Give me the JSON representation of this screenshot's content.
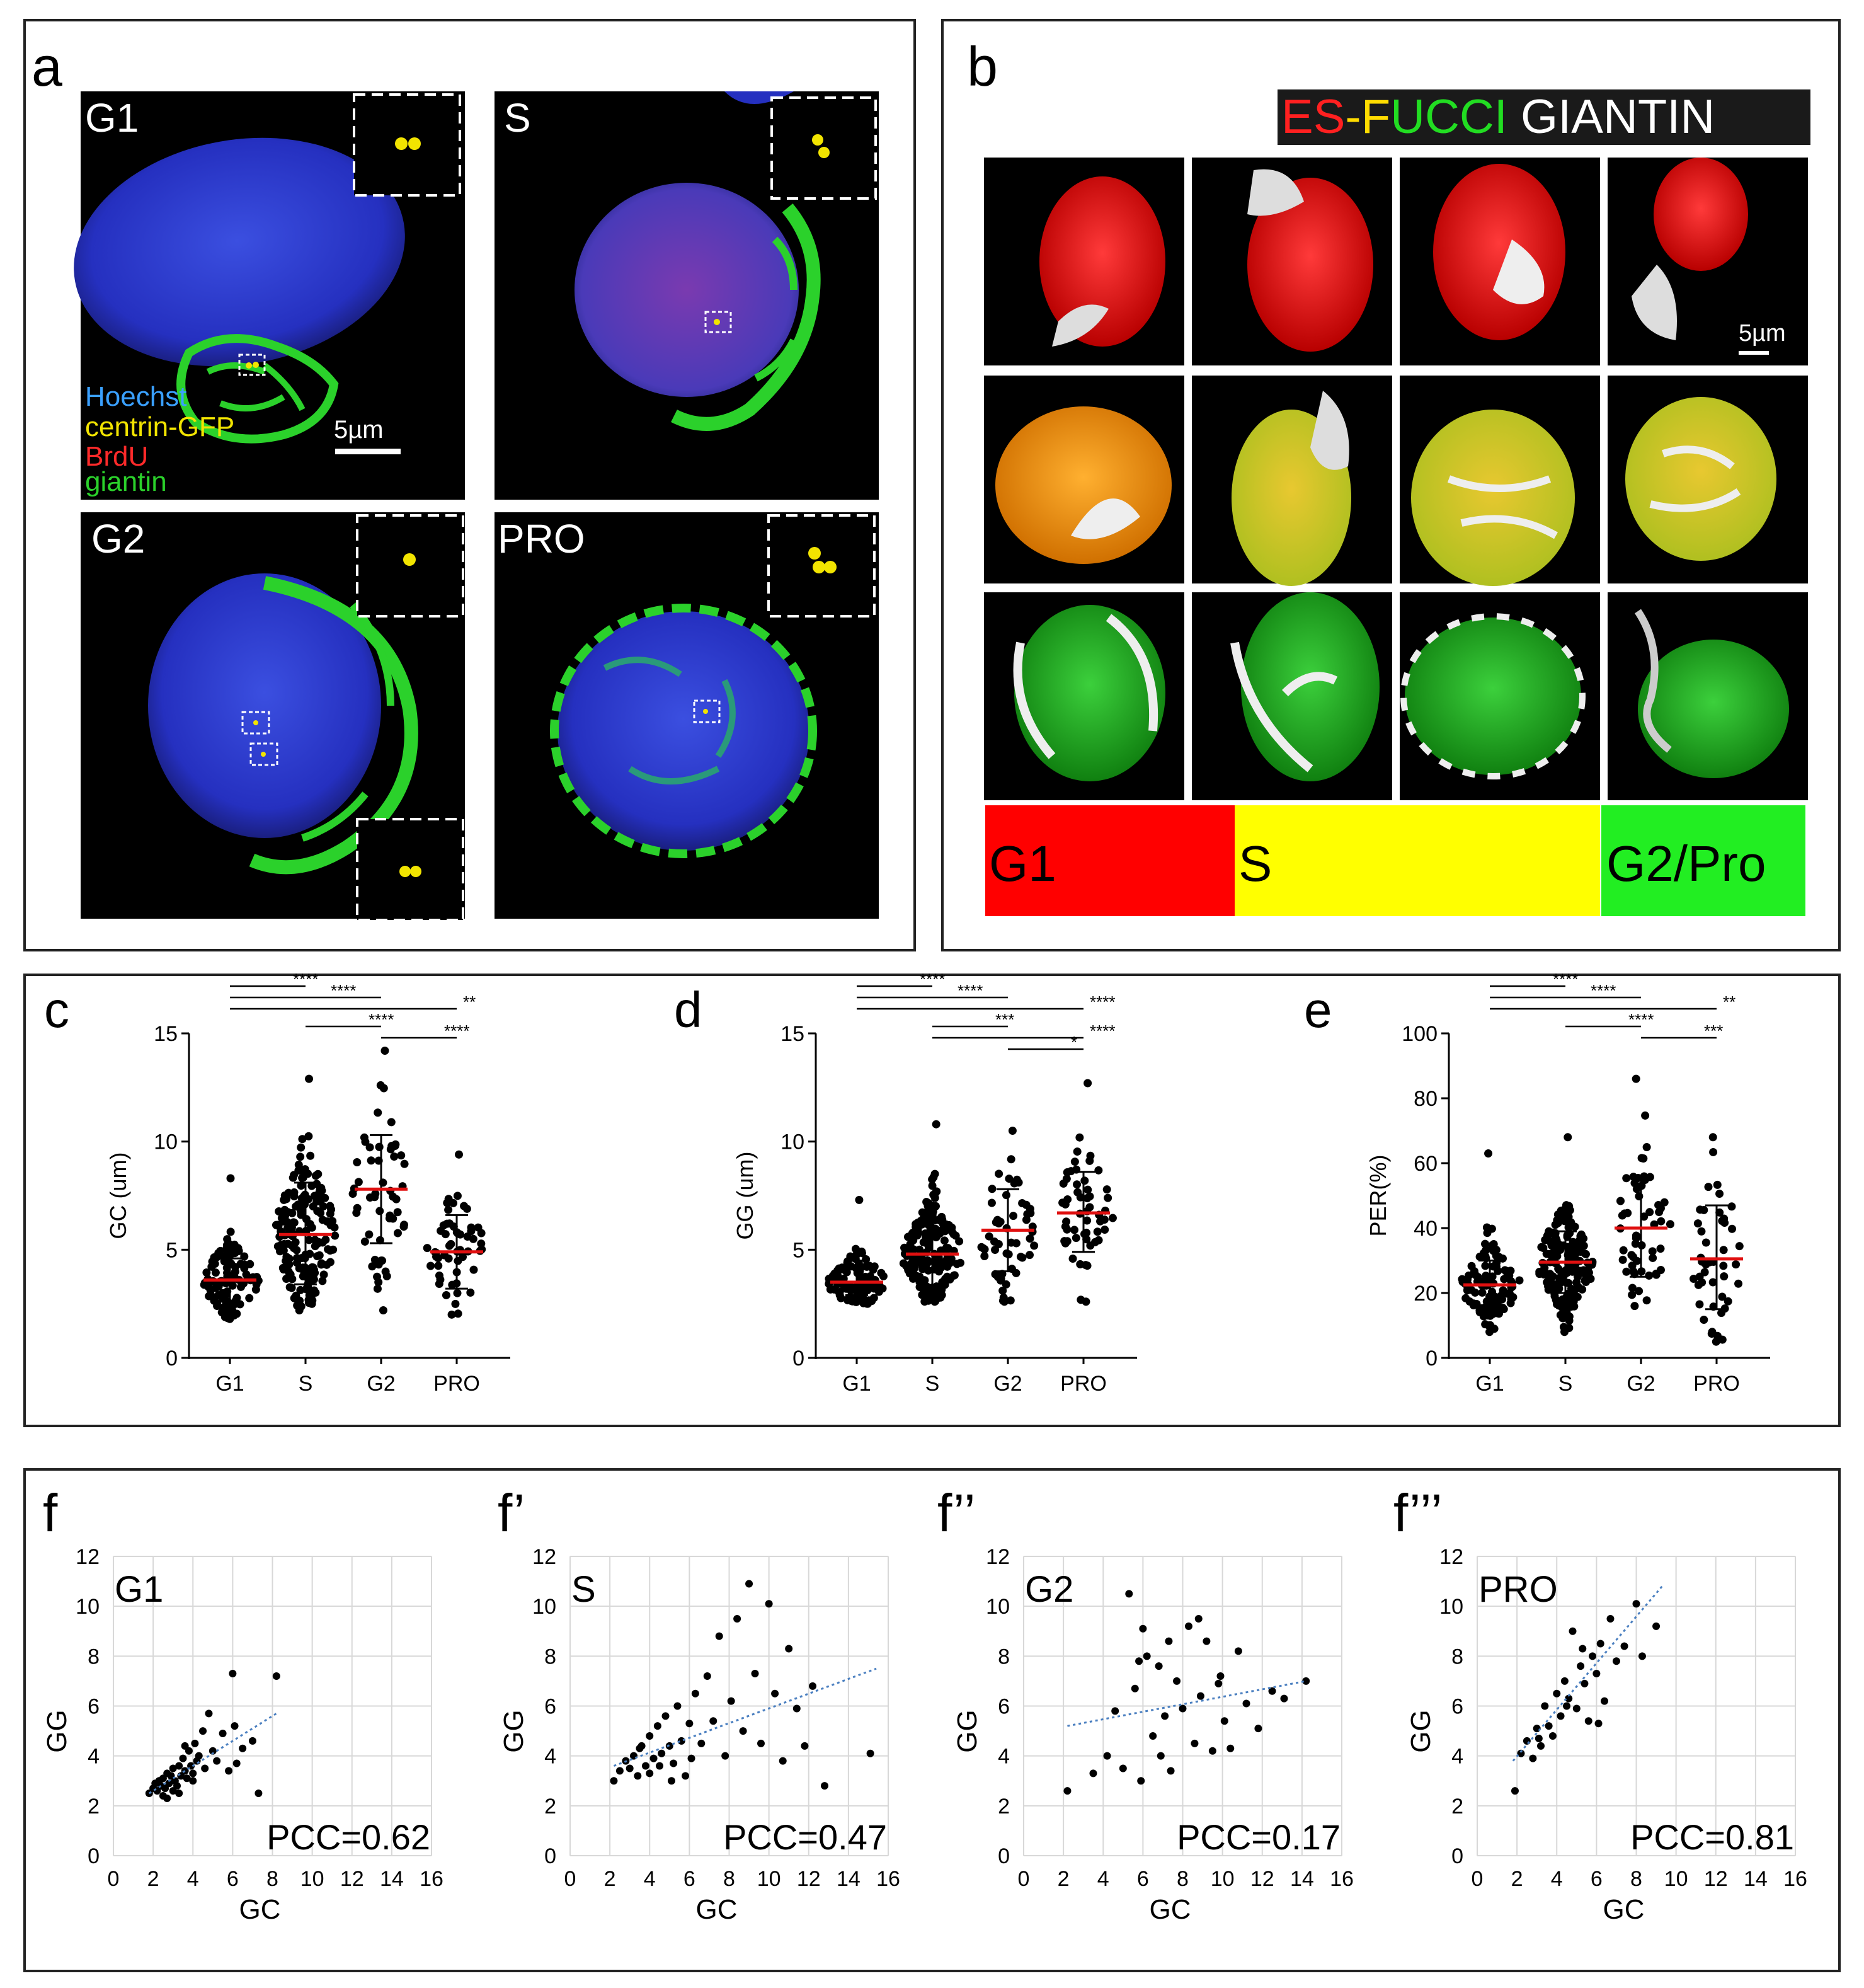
{
  "panel_a": {
    "letter": "a",
    "scale": "5µm",
    "images": [
      {
        "label": "G1"
      },
      {
        "label": "S"
      },
      {
        "label": "G2"
      },
      {
        "label": "PRO"
      }
    ],
    "legend": [
      {
        "text": "Hoechst",
        "color": "#3aa0ff"
      },
      {
        "text": "centrin-GFP",
        "color": "#f2e400"
      },
      {
        "text": "BrdU",
        "color": "#ff2a2a"
      },
      {
        "text": "giantin",
        "color": "#2bd12b"
      }
    ]
  },
  "panel_b": {
    "letter": "b",
    "title_parts": [
      {
        "text": "ES",
        "color": "#ff2020"
      },
      {
        "text": "-",
        "color": "#ffdc00"
      },
      {
        "text": "F",
        "color": "#ffdc00"
      },
      {
        "text": "UCCI",
        "color": "#22dd22"
      },
      {
        "text": " GIANTIN",
        "color": "#ffffff"
      }
    ],
    "scale": "5µm",
    "phases": [
      {
        "label": "G1",
        "color": "#ff0000"
      },
      {
        "label": "S",
        "color": "#ffff00"
      },
      {
        "label": "G2/Pro",
        "color": "#22ee22"
      }
    ]
  },
  "chart_data": [
    {
      "type": "scatter",
      "panel": "c",
      "ylabel": "GC (um)",
      "ylim": [
        0,
        15
      ],
      "yticks": [
        0,
        5,
        10,
        15
      ],
      "categories": [
        "G1",
        "S",
        "G2",
        "PRO"
      ],
      "mean": [
        3.6,
        5.7,
        7.8,
        4.9
      ],
      "sd_low": [
        2.6,
        3.4,
        5.3,
        3.2
      ],
      "sd_high": [
        4.6,
        8.1,
        10.3,
        6.6
      ],
      "range": [
        [
          1.8,
          8.3
        ],
        [
          2.2,
          12.9
        ],
        [
          2.2,
          14.2
        ],
        [
          2.0,
          9.4
        ]
      ],
      "n": [
        120,
        180,
        55,
        55
      ],
      "significance": [
        {
          "pair": [
            "G1",
            "S"
          ],
          "stars": "****"
        },
        {
          "pair": [
            "G1",
            "G2"
          ],
          "stars": "****"
        },
        {
          "pair": [
            "G1",
            "PRO"
          ],
          "stars": "**"
        },
        {
          "pair": [
            "S",
            "G2"
          ],
          "stars": "****"
        },
        {
          "pair": [
            "G2",
            "PRO"
          ],
          "stars": "****"
        }
      ]
    },
    {
      "type": "scatter",
      "panel": "d",
      "ylabel": "GG (um)",
      "ylim": [
        0,
        15
      ],
      "yticks": [
        0,
        5,
        10,
        15
      ],
      "categories": [
        "G1",
        "S",
        "G2",
        "PRO"
      ],
      "mean": [
        3.5,
        4.8,
        5.9,
        6.7
      ],
      "sd_low": [
        2.9,
        3.3,
        4.0,
        4.9
      ],
      "sd_high": [
        4.5,
        6.3,
        7.8,
        8.6
      ],
      "range": [
        [
          2.5,
          7.3
        ],
        [
          2.6,
          10.8
        ],
        [
          2.6,
          10.5
        ],
        [
          2.6,
          12.7
        ]
      ],
      "n": [
        110,
        180,
        55,
        55
      ],
      "significance": [
        {
          "pair": [
            "G1",
            "S"
          ],
          "stars": "****"
        },
        {
          "pair": [
            "G1",
            "G2"
          ],
          "stars": "****"
        },
        {
          "pair": [
            "G1",
            "PRO"
          ],
          "stars": "****"
        },
        {
          "pair": [
            "S",
            "G2"
          ],
          "stars": "***"
        },
        {
          "pair": [
            "S",
            "PRO"
          ],
          "stars": "****"
        },
        {
          "pair": [
            "G2",
            "PRO"
          ],
          "stars": "*"
        }
      ]
    },
    {
      "type": "scatter",
      "panel": "e",
      "ylabel": "PER(%)",
      "ylim": [
        0,
        100
      ],
      "yticks": [
        0,
        20,
        40,
        60,
        80,
        100
      ],
      "categories": [
        "G1",
        "S",
        "G2",
        "PRO"
      ],
      "mean": [
        22.5,
        29.5,
        40,
        30.5
      ],
      "sd_low": [
        15,
        20,
        25,
        15
      ],
      "sd_high": [
        30,
        39,
        56,
        47
      ],
      "range": [
        [
          8,
          63
        ],
        [
          8,
          68
        ],
        [
          16,
          86
        ],
        [
          5,
          68
        ]
      ],
      "n": [
        120,
        180,
        55,
        45
      ],
      "significance": [
        {
          "pair": [
            "G1",
            "S"
          ],
          "stars": "****"
        },
        {
          "pair": [
            "G1",
            "G2"
          ],
          "stars": "****"
        },
        {
          "pair": [
            "G1",
            "PRO"
          ],
          "stars": "**"
        },
        {
          "pair": [
            "S",
            "G2"
          ],
          "stars": "****"
        },
        {
          "pair": [
            "G2",
            "PRO"
          ],
          "stars": "***"
        }
      ]
    },
    {
      "type": "scatter",
      "panel": "f",
      "label": "G1",
      "pcc": "PCC=0.62",
      "xlabel": "GC",
      "ylabel": "GG",
      "xlim": [
        0,
        16
      ],
      "ylim": [
        0,
        12
      ],
      "xticks": [
        0,
        2,
        4,
        6,
        8,
        10,
        12,
        14,
        16
      ],
      "yticks": [
        0,
        2,
        4,
        6,
        8,
        10,
        12
      ],
      "trend": [
        [
          1.8,
          2.5
        ],
        [
          8.2,
          5.7
        ]
      ],
      "points": [
        [
          1.8,
          2.5
        ],
        [
          2.0,
          2.7
        ],
        [
          2.1,
          2.9
        ],
        [
          2.2,
          2.6
        ],
        [
          2.3,
          3.0
        ],
        [
          2.4,
          2.8
        ],
        [
          2.5,
          3.1
        ],
        [
          2.6,
          2.7
        ],
        [
          2.7,
          3.3
        ],
        [
          2.8,
          2.9
        ],
        [
          2.9,
          3.2
        ],
        [
          3.0,
          3.5
        ],
        [
          3.1,
          3.0
        ],
        [
          3.2,
          2.8
        ],
        [
          3.3,
          3.6
        ],
        [
          3.4,
          3.2
        ],
        [
          3.5,
          3.9
        ],
        [
          3.6,
          3.4
        ],
        [
          3.7,
          3.1
        ],
        [
          3.8,
          4.2
        ],
        [
          3.9,
          3.6
        ],
        [
          4.0,
          3.3
        ],
        [
          4.1,
          4.5
        ],
        [
          4.2,
          3.8
        ],
        [
          4.3,
          4.0
        ],
        [
          4.5,
          5.0
        ],
        [
          4.6,
          3.5
        ],
        [
          4.8,
          5.7
        ],
        [
          5.0,
          4.2
        ],
        [
          5.2,
          3.8
        ],
        [
          5.5,
          4.9
        ],
        [
          5.8,
          3.4
        ],
        [
          6.0,
          7.3
        ],
        [
          6.1,
          5.2
        ],
        [
          6.2,
          3.7
        ],
        [
          6.5,
          4.3
        ],
        [
          7.0,
          4.6
        ],
        [
          7.3,
          2.5
        ],
        [
          8.2,
          7.2
        ],
        [
          2.5,
          2.4
        ],
        [
          3.0,
          2.6
        ],
        [
          3.3,
          2.5
        ],
        [
          2.7,
          2.3
        ],
        [
          4.0,
          3.0
        ],
        [
          3.6,
          4.4
        ]
      ]
    },
    {
      "type": "scatter",
      "panel": "f’",
      "label": "S",
      "pcc": "PCC=0.47",
      "xlabel": "GC",
      "ylabel": "GG",
      "xlim": [
        0,
        16
      ],
      "ylim": [
        0,
        12
      ],
      "xticks": [
        0,
        2,
        4,
        6,
        8,
        10,
        12,
        14,
        16
      ],
      "yticks": [
        0,
        2,
        4,
        6,
        8,
        10,
        12
      ],
      "trend": [
        [
          2.2,
          3.6
        ],
        [
          15.4,
          7.5
        ]
      ],
      "points": [
        [
          2.2,
          3.0
        ],
        [
          2.5,
          3.4
        ],
        [
          2.8,
          3.8
        ],
        [
          3.0,
          3.5
        ],
        [
          3.2,
          4.0
        ],
        [
          3.4,
          3.2
        ],
        [
          3.6,
          4.4
        ],
        [
          3.8,
          3.6
        ],
        [
          4.0,
          4.8
        ],
        [
          4.2,
          3.9
        ],
        [
          4.4,
          5.2
        ],
        [
          4.6,
          4.1
        ],
        [
          4.8,
          5.6
        ],
        [
          5.0,
          4.4
        ],
        [
          5.2,
          3.7
        ],
        [
          5.4,
          6.0
        ],
        [
          5.6,
          4.6
        ],
        [
          5.8,
          3.2
        ],
        [
          6.0,
          5.3
        ],
        [
          6.3,
          6.5
        ],
        [
          6.6,
          4.5
        ],
        [
          6.9,
          7.2
        ],
        [
          7.2,
          5.4
        ],
        [
          7.5,
          8.8
        ],
        [
          7.8,
          4.0
        ],
        [
          8.1,
          6.2
        ],
        [
          8.4,
          9.5
        ],
        [
          8.7,
          5.0
        ],
        [
          9.0,
          10.9
        ],
        [
          9.3,
          7.3
        ],
        [
          9.6,
          4.5
        ],
        [
          10.0,
          10.1
        ],
        [
          10.3,
          6.5
        ],
        [
          10.7,
          3.8
        ],
        [
          11.0,
          8.3
        ],
        [
          11.4,
          5.9
        ],
        [
          11.8,
          4.4
        ],
        [
          12.2,
          6.8
        ],
        [
          12.8,
          2.8
        ],
        [
          15.1,
          4.1
        ],
        [
          4.0,
          3.3
        ],
        [
          4.5,
          3.6
        ],
        [
          5.1,
          3.0
        ],
        [
          6.1,
          3.9
        ],
        [
          3.5,
          4.3
        ]
      ]
    },
    {
      "type": "scatter",
      "panel": "f’’",
      "label": "G2",
      "pcc": "PCC=0.17",
      "xlabel": "GC",
      "ylabel": "GG",
      "xlim": [
        0,
        16
      ],
      "ylim": [
        0,
        12
      ],
      "xticks": [
        0,
        2,
        4,
        6,
        8,
        10,
        12,
        14,
        16
      ],
      "yticks": [
        0,
        2,
        4,
        6,
        8,
        10,
        12
      ],
      "trend": [
        [
          2.2,
          5.2
        ],
        [
          14.2,
          7.0
        ]
      ],
      "points": [
        [
          2.2,
          2.6
        ],
        [
          3.5,
          3.3
        ],
        [
          4.2,
          4.0
        ],
        [
          4.6,
          5.8
        ],
        [
          5.0,
          3.5
        ],
        [
          5.3,
          10.5
        ],
        [
          5.6,
          6.7
        ],
        [
          5.9,
          3.0
        ],
        [
          6.2,
          8.0
        ],
        [
          6.5,
          4.8
        ],
        [
          6.8,
          7.6
        ],
        [
          7.1,
          5.6
        ],
        [
          7.4,
          3.4
        ],
        [
          7.7,
          7.0
        ],
        [
          8.0,
          5.9
        ],
        [
          8.3,
          9.2
        ],
        [
          8.6,
          4.5
        ],
        [
          8.9,
          6.4
        ],
        [
          9.2,
          8.6
        ],
        [
          9.5,
          4.2
        ],
        [
          9.8,
          6.9
        ],
        [
          10.1,
          5.4
        ],
        [
          10.4,
          4.3
        ],
        [
          10.8,
          8.2
        ],
        [
          11.2,
          6.1
        ],
        [
          11.8,
          5.1
        ],
        [
          12.5,
          6.6
        ],
        [
          13.1,
          6.3
        ],
        [
          14.2,
          7.0
        ],
        [
          6.0,
          9.1
        ],
        [
          7.3,
          8.6
        ],
        [
          8.8,
          9.5
        ],
        [
          5.8,
          7.8
        ],
        [
          9.9,
          7.2
        ],
        [
          6.9,
          4.0
        ]
      ]
    },
    {
      "type": "scatter",
      "panel": "f’’’",
      "label": "PRO",
      "pcc": "PCC=0.81",
      "xlabel": "GC",
      "ylabel": "GG",
      "xlim": [
        0,
        16
      ],
      "ylim": [
        0,
        12
      ],
      "xticks": [
        0,
        2,
        4,
        6,
        8,
        10,
        12,
        14,
        16
      ],
      "yticks": [
        0,
        2,
        4,
        6,
        8,
        10,
        12
      ],
      "trend": [
        [
          1.8,
          3.8
        ],
        [
          9.3,
          10.8
        ]
      ],
      "points": [
        [
          1.9,
          2.6
        ],
        [
          2.2,
          4.1
        ],
        [
          2.5,
          4.6
        ],
        [
          2.8,
          3.9
        ],
        [
          3.0,
          5.1
        ],
        [
          3.2,
          4.4
        ],
        [
          3.4,
          6.0
        ],
        [
          3.6,
          5.2
        ],
        [
          3.8,
          4.8
        ],
        [
          4.0,
          6.5
        ],
        [
          4.2,
          5.6
        ],
        [
          4.4,
          7.0
        ],
        [
          4.6,
          6.3
        ],
        [
          4.8,
          9.0
        ],
        [
          5.0,
          5.9
        ],
        [
          5.2,
          7.6
        ],
        [
          5.4,
          6.9
        ],
        [
          5.6,
          5.4
        ],
        [
          5.8,
          8.0
        ],
        [
          6.0,
          7.3
        ],
        [
          6.2,
          8.5
        ],
        [
          6.4,
          6.2
        ],
        [
          6.7,
          9.5
        ],
        [
          7.0,
          7.8
        ],
        [
          7.4,
          8.4
        ],
        [
          8.0,
          10.1
        ],
        [
          8.3,
          8.0
        ],
        [
          9.0,
          9.2
        ],
        [
          3.1,
          4.7
        ],
        [
          4.5,
          6.0
        ],
        [
          5.3,
          8.3
        ],
        [
          6.1,
          5.3
        ]
      ]
    }
  ]
}
